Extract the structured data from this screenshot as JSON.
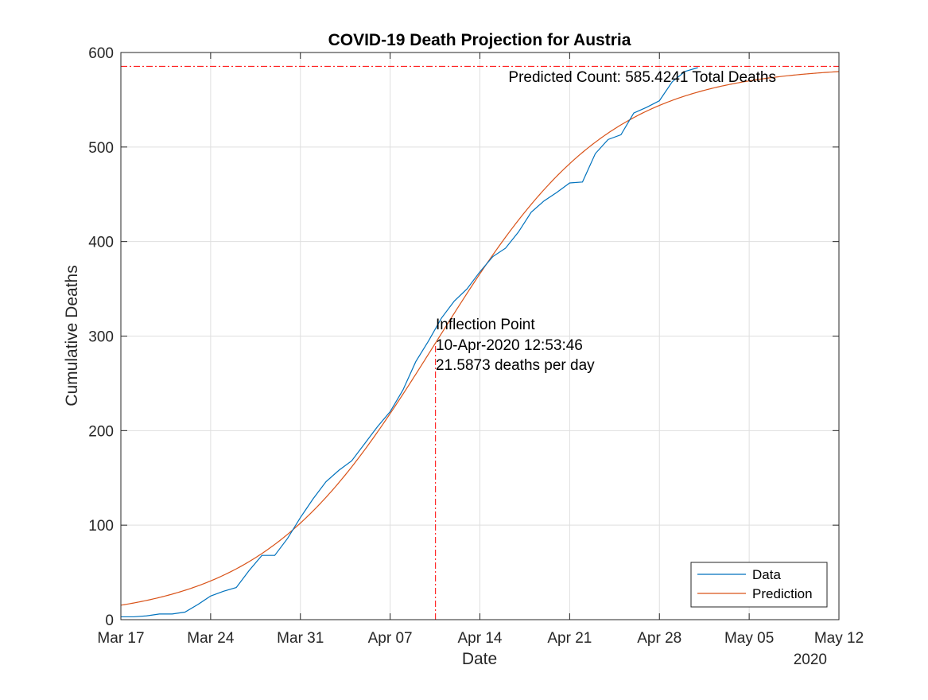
{
  "chart_data": {
    "type": "line",
    "title": "COVID-19 Death Projection for Austria",
    "xlabel": "Date",
    "ylabel": "Cumulative Deaths",
    "year_label": "2020",
    "xlim": [
      "2020-03-17",
      "2020-05-12"
    ],
    "ylim": [
      0,
      600
    ],
    "x_ticks": [
      "2020-03-17",
      "2020-03-24",
      "2020-03-31",
      "2020-04-07",
      "2020-04-14",
      "2020-04-21",
      "2020-04-28",
      "2020-05-05",
      "2020-05-12"
    ],
    "x_tick_labels": [
      "Mar 17",
      "Mar 24",
      "Mar 31",
      "Apr 07",
      "Apr 14",
      "Apr 21",
      "Apr 28",
      "May 05",
      "May 12"
    ],
    "y_ticks": [
      0,
      100,
      200,
      300,
      400,
      500,
      600
    ],
    "y_tick_labels": [
      "0",
      "100",
      "200",
      "300",
      "400",
      "500",
      "600"
    ],
    "grid": true,
    "legend_position": "bottom-right",
    "series": [
      {
        "name": "Data",
        "color": "#0072BD",
        "x": [
          "2020-03-17",
          "2020-03-18",
          "2020-03-19",
          "2020-03-20",
          "2020-03-21",
          "2020-03-22",
          "2020-03-23",
          "2020-03-24",
          "2020-03-25",
          "2020-03-26",
          "2020-03-27",
          "2020-03-28",
          "2020-03-29",
          "2020-03-30",
          "2020-03-31",
          "2020-04-01",
          "2020-04-02",
          "2020-04-03",
          "2020-04-04",
          "2020-04-05",
          "2020-04-06",
          "2020-04-07",
          "2020-04-08",
          "2020-04-09",
          "2020-04-10",
          "2020-04-11",
          "2020-04-12",
          "2020-04-13",
          "2020-04-14",
          "2020-04-15",
          "2020-04-16",
          "2020-04-17",
          "2020-04-18",
          "2020-04-19",
          "2020-04-20",
          "2020-04-21",
          "2020-04-22",
          "2020-04-23",
          "2020-04-24",
          "2020-04-25",
          "2020-04-26",
          "2020-04-27",
          "2020-04-28",
          "2020-04-29",
          "2020-04-30",
          "2020-05-01"
        ],
        "values": [
          3,
          3,
          4,
          6,
          6,
          8,
          16,
          25,
          30,
          34,
          52,
          68,
          68,
          86,
          108,
          128,
          146,
          158,
          168,
          186,
          204,
          220,
          243,
          273,
          295,
          319,
          337,
          350,
          368,
          384,
          393,
          410,
          431,
          443,
          452,
          462,
          463,
          493,
          508,
          513,
          536,
          542,
          549,
          569,
          580,
          584
        ]
      },
      {
        "name": "Prediction",
        "color": "#D95319",
        "model": "logistic",
        "K": 585.4241,
        "r": 0.1475,
        "x0": "2020-04-10T12:53:46"
      }
    ],
    "annotations": [
      {
        "id": "predicted-count",
        "text": "Predicted Count: 585.4241 Total Deaths",
        "y": 585.4241
      },
      {
        "id": "inflection-point",
        "lines": [
          "Inflection Point",
          "10-Apr-2020 12:53:46",
          "21.5873 deaths per day"
        ],
        "x": "2020-04-10T12:53:46"
      }
    ]
  }
}
